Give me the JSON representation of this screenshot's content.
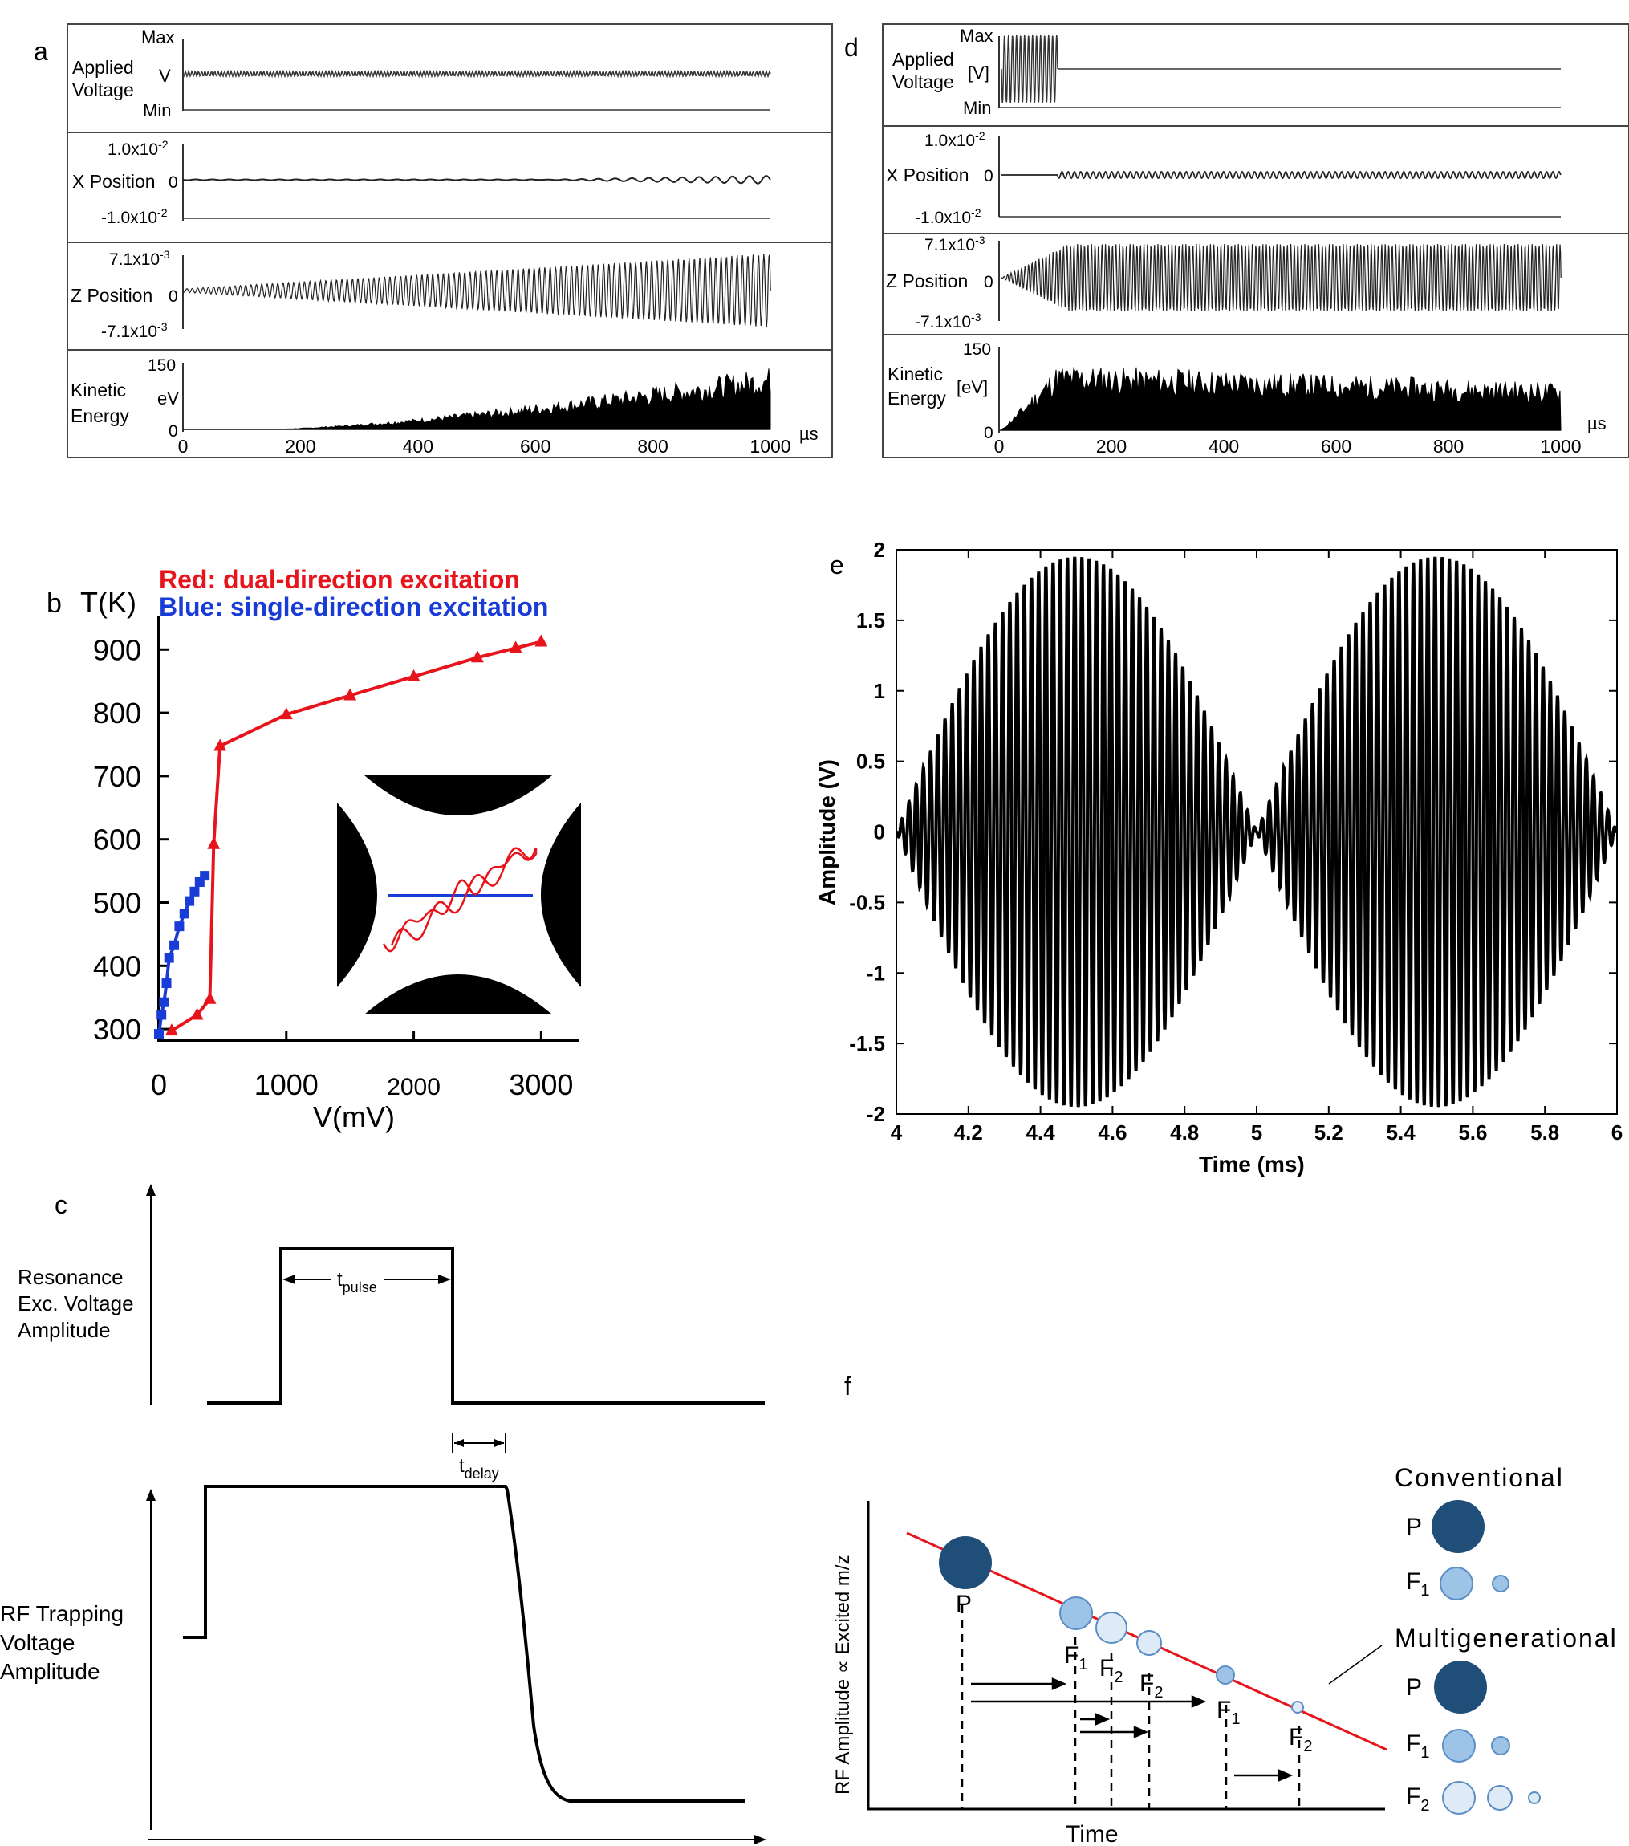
{
  "panels": {
    "a": {
      "letter": "a",
      "rows": [
        {
          "label": [
            "Applied",
            "Voltage"
          ],
          "unit": "V",
          "top": "Max",
          "bottom": "Min"
        },
        {
          "label": [
            "X Position"
          ],
          "unit": "",
          "top": "1.0x10",
          "top_exp": "-2",
          "mid": "0",
          "bottom": "-1.0x10",
          "bottom_exp": "-2"
        },
        {
          "label": [
            "Z Position"
          ],
          "unit": "",
          "top": "7.1x10",
          "top_exp": "-3",
          "mid": "0",
          "bottom": "-7.1x10",
          "bottom_exp": "-3"
        },
        {
          "label": [
            "Kinetic",
            "Energy"
          ],
          "unit": "eV",
          "top": "150",
          "bottom": "0"
        }
      ],
      "xticks": [
        "0",
        "200",
        "400",
        "600",
        "800",
        "1000"
      ],
      "xunit": "µs"
    },
    "d": {
      "letter": "d",
      "rows": [
        {
          "label": [
            "Applied",
            "Voltage"
          ],
          "unit": "[V]",
          "top": "Max",
          "bottom": "Min"
        },
        {
          "label": [
            "X Position"
          ],
          "unit": "",
          "top": "1.0x10",
          "top_exp": "-2",
          "mid": "0",
          "bottom": "-1.0x10",
          "bottom_exp": "-2"
        },
        {
          "label": [
            "Z Position"
          ],
          "unit": "",
          "top": "7.1x10",
          "top_exp": "-3",
          "mid": "0",
          "bottom": "-7.1x10",
          "bottom_exp": "-3"
        },
        {
          "label": [
            "Kinetic",
            "Energy"
          ],
          "unit": "[eV]",
          "top": "150",
          "bottom": "0"
        }
      ],
      "xticks": [
        "0",
        "200",
        "400",
        "600",
        "800",
        "1000"
      ],
      "xunit": "µs"
    },
    "b": {
      "letter": "b",
      "ylabel": "T(K)",
      "xlabel": "V(mV)",
      "legend_red": "Red: dual-direction excitation",
      "legend_blue": "Blue: single-direction excitation",
      "yticks": [
        "300",
        "400",
        "500",
        "600",
        "700",
        "800",
        "900"
      ],
      "xticks": [
        "0",
        "1000",
        "2000",
        "3000"
      ]
    },
    "c": {
      "letter": "c",
      "upper_label": [
        "Resonance",
        "Exc. Voltage",
        "Amplitude"
      ],
      "lower_label": [
        "RF Trapping",
        "Voltage",
        "Amplitude"
      ],
      "t_pulse": "t",
      "t_pulse_sub": "pulse",
      "t_delay": "t",
      "t_delay_sub": "delay"
    },
    "e": {
      "letter": "e",
      "ylabel": "Amplitude (V)",
      "xlabel": "Time (ms)",
      "yticks": [
        "2",
        "1.5",
        "1",
        "0.5",
        "0",
        "-0.5",
        "-1",
        "-1.5",
        "-2"
      ],
      "xticks": [
        "4",
        "4.2",
        "4.4",
        "4.6",
        "4.8",
        "5",
        "5.2",
        "5.4",
        "5.6",
        "5.8",
        "6"
      ]
    },
    "f": {
      "letter": "f",
      "ylabel": "RF Amplitude ∝ Excited m/z",
      "xlabel": "Time",
      "conventional": "Conventional",
      "multigenerational": "Multigenerational",
      "P": "P",
      "F": "F",
      "sub1": "1",
      "sub2": "2"
    }
  },
  "colors": {
    "red": "#e8141c",
    "blue": "#1a3cd6",
    "navy": "#1f4e79",
    "mid_blue": "#9dc3e6",
    "light_blue": "#deebf7",
    "black": "#000000"
  },
  "chart_data": [
    {
      "type": "line",
      "panel": "b",
      "xlabel": "V(mV)",
      "ylabel": "T(K)",
      "xlim": [
        0,
        3300
      ],
      "ylim": [
        290,
        960
      ],
      "series": [
        {
          "name": "Red: dual-direction excitation",
          "color": "#e8141c",
          "x": [
            100,
            300,
            400,
            430,
            480,
            1000,
            1500,
            2000,
            2500,
            2800,
            3000
          ],
          "y": [
            305,
            330,
            355,
            600,
            755,
            805,
            835,
            865,
            895,
            910,
            920
          ]
        },
        {
          "name": "Blue: single-direction excitation",
          "color": "#1a3cd6",
          "x": [
            0,
            20,
            40,
            60,
            80,
            120,
            160,
            200,
            240,
            280,
            320,
            360
          ],
          "y": [
            300,
            330,
            350,
            380,
            420,
            440,
            470,
            490,
            510,
            525,
            540,
            550
          ]
        }
      ]
    },
    {
      "type": "line",
      "panel": "e",
      "xlabel": "Time (ms)",
      "ylabel": "Amplitude (V)",
      "xlim": [
        4,
        6
      ],
      "ylim": [
        -2,
        2
      ],
      "series": [
        {
          "envelope_peak": 1.95,
          "envelope_period_ms": 1.0,
          "envelope_zero_at_ms": [
            4,
            5,
            6
          ],
          "carrier_cycles_per_ms": 50
        }
      ]
    }
  ]
}
